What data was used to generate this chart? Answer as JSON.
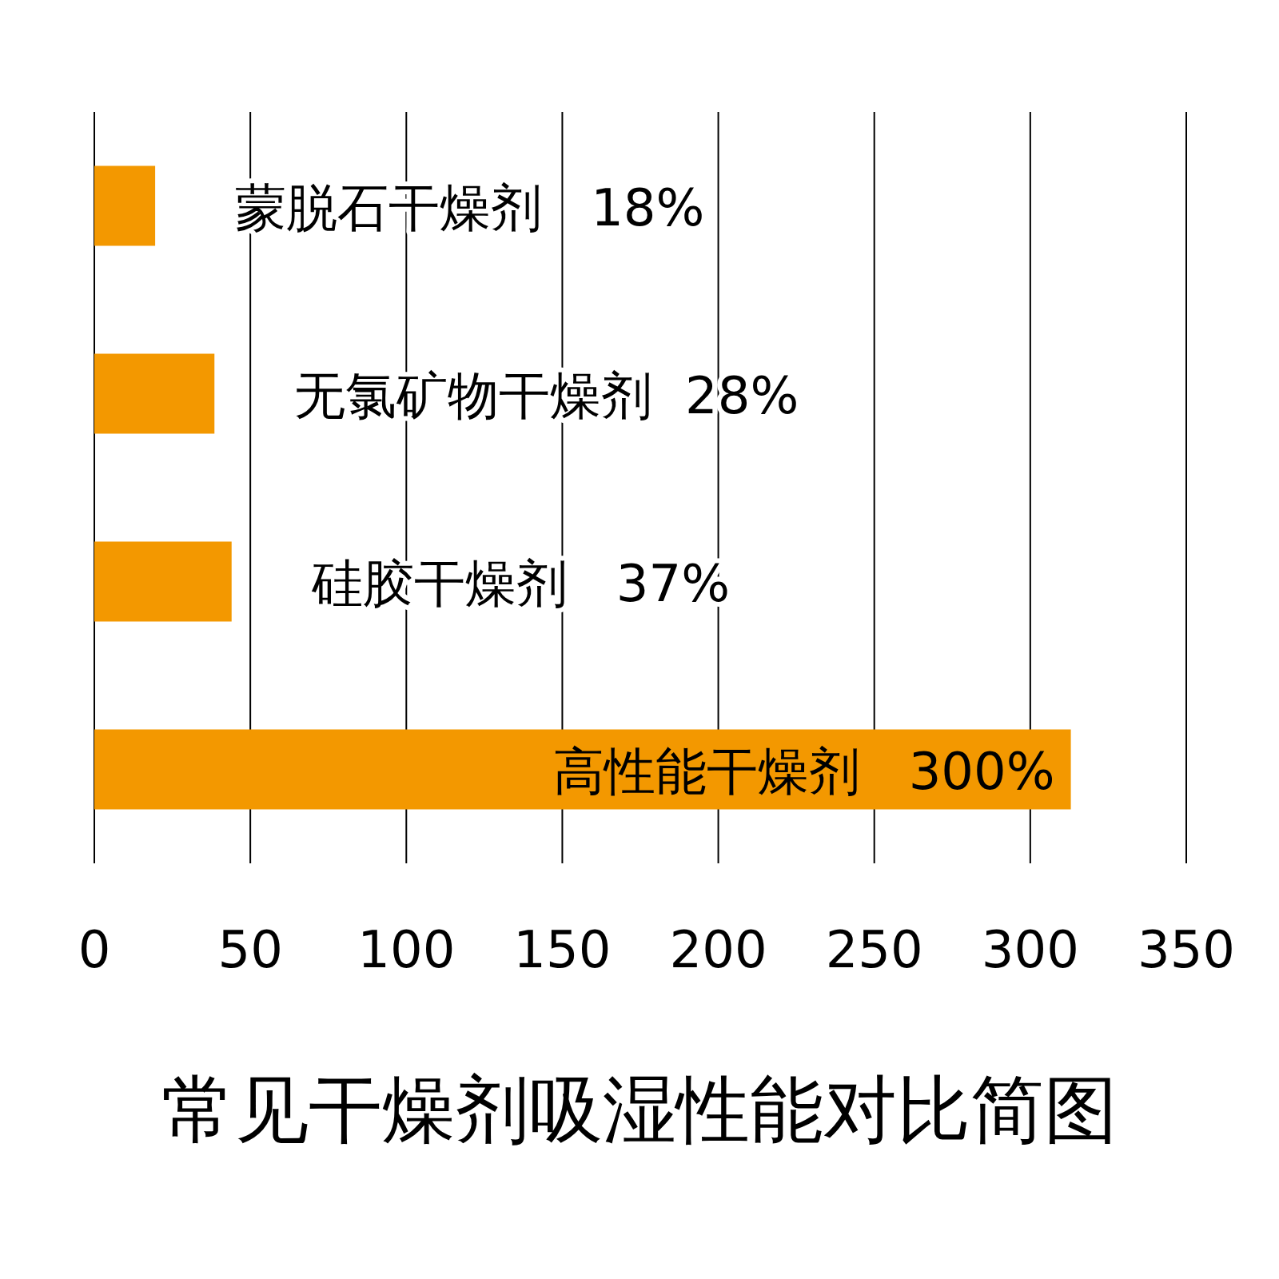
{
  "chart_data": {
    "type": "bar",
    "orientation": "horizontal",
    "title": "常见干燥剂吸湿性能对比简图",
    "categories": [
      "蒙脱石干燥剂   18%",
      "无氯矿物干燥剂  28%",
      "硅胶干燥剂   37%",
      "高性能干燥剂   300%"
    ],
    "values": [
      19.5,
      38.5,
      44,
      313
    ],
    "color": "#f39800",
    "xlim": [
      0,
      350
    ],
    "xticks": [
      0,
      50,
      100,
      150,
      200,
      250,
      300,
      350
    ],
    "grid": "x",
    "tick_labels": "x"
  }
}
